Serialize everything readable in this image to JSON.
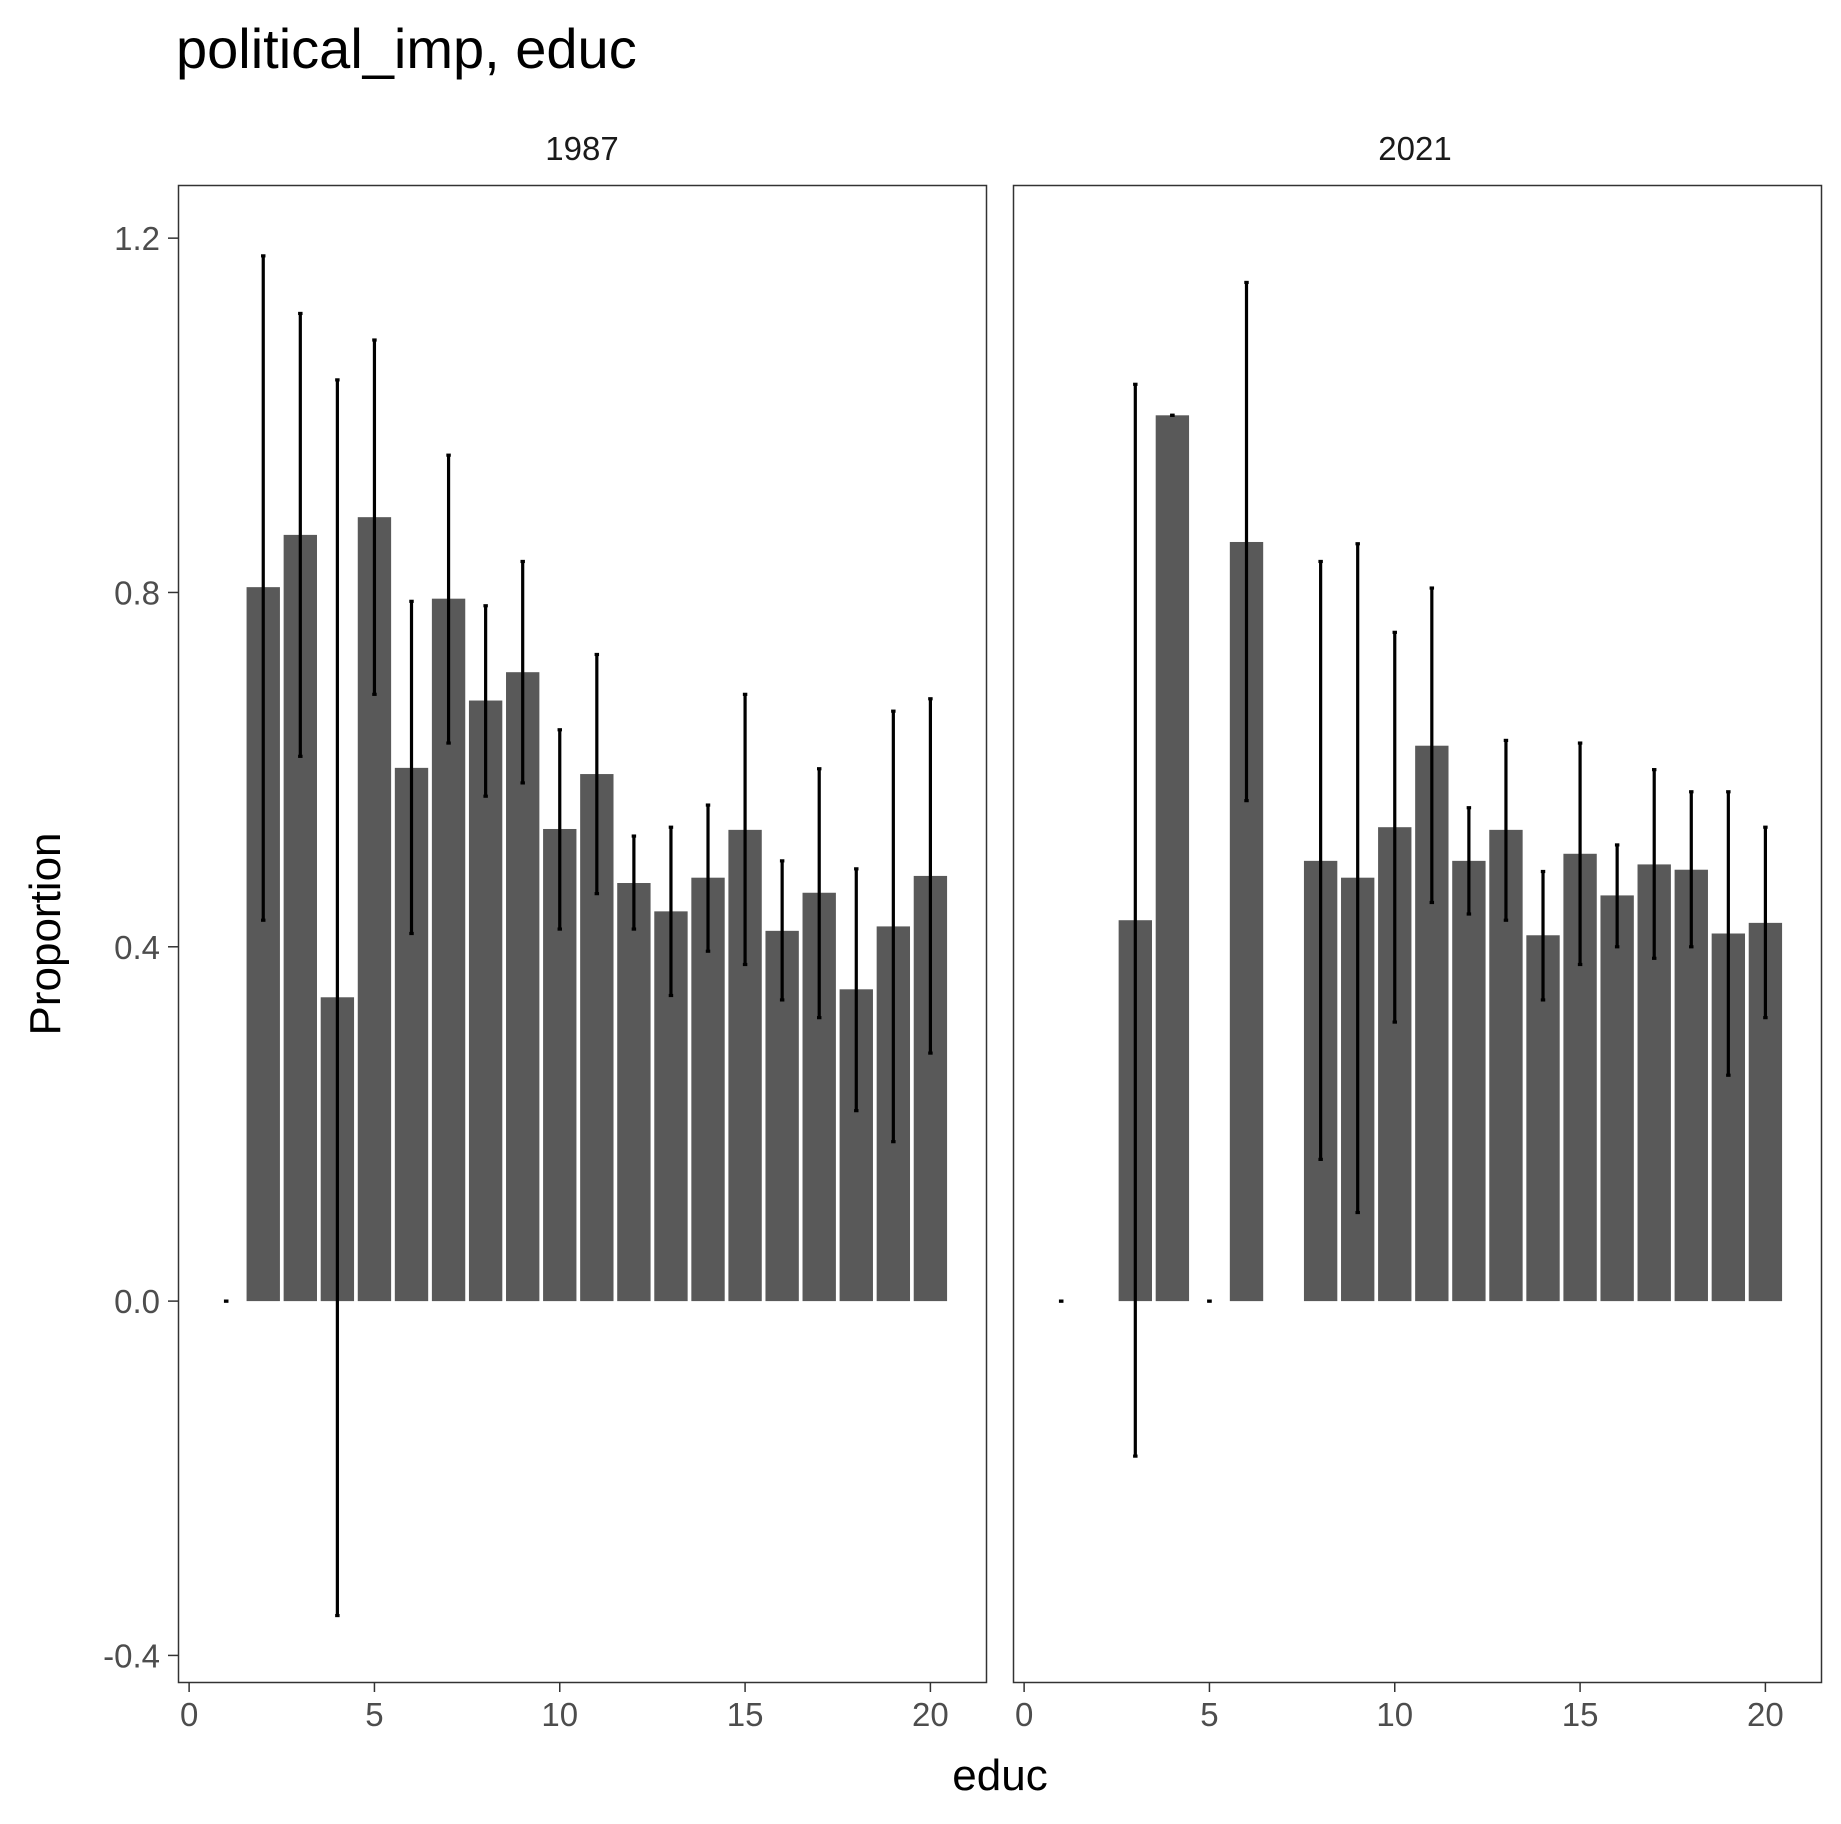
{
  "chart_data": {
    "type": "bar",
    "title": "political_imp, educ",
    "xlabel": "educ",
    "ylabel": "Proportion",
    "xlim": [
      -0.3,
      21.5
    ],
    "ylim": [
      -0.43,
      1.26
    ],
    "x_ticks": [
      "0",
      "5",
      "10",
      "15",
      "20"
    ],
    "y_ticks": [
      "-0.4",
      "0.0",
      "0.4",
      "0.8",
      "1.2"
    ],
    "grid": false,
    "colors": {
      "bar": "#595959",
      "errorbar": "#000000",
      "panel_border": "#333333"
    },
    "panels": [
      {
        "label": "1987",
        "bars": [
          {
            "x": 1,
            "y": 0.0,
            "lo": 0.0,
            "hi": 0.0
          },
          {
            "x": 2,
            "y": 0.806,
            "lo": 0.43,
            "hi": 1.18
          },
          {
            "x": 3,
            "y": 0.865,
            "lo": 0.615,
            "hi": 1.115
          },
          {
            "x": 4,
            "y": 0.343,
            "lo": -0.355,
            "hi": 1.04
          },
          {
            "x": 5,
            "y": 0.885,
            "lo": 0.685,
            "hi": 1.085
          },
          {
            "x": 6,
            "y": 0.602,
            "lo": 0.415,
            "hi": 0.79
          },
          {
            "x": 7,
            "y": 0.793,
            "lo": 0.63,
            "hi": 0.955
          },
          {
            "x": 8,
            "y": 0.678,
            "lo": 0.57,
            "hi": 0.785
          },
          {
            "x": 9,
            "y": 0.71,
            "lo": 0.585,
            "hi": 0.835
          },
          {
            "x": 10,
            "y": 0.533,
            "lo": 0.42,
            "hi": 0.645
          },
          {
            "x": 11,
            "y": 0.595,
            "lo": 0.46,
            "hi": 0.73
          },
          {
            "x": 12,
            "y": 0.472,
            "lo": 0.42,
            "hi": 0.525
          },
          {
            "x": 13,
            "y": 0.44,
            "lo": 0.345,
            "hi": 0.535
          },
          {
            "x": 14,
            "y": 0.478,
            "lo": 0.395,
            "hi": 0.56
          },
          {
            "x": 15,
            "y": 0.532,
            "lo": 0.38,
            "hi": 0.685
          },
          {
            "x": 16,
            "y": 0.418,
            "lo": 0.34,
            "hi": 0.497
          },
          {
            "x": 17,
            "y": 0.461,
            "lo": 0.32,
            "hi": 0.601
          },
          {
            "x": 18,
            "y": 0.352,
            "lo": 0.215,
            "hi": 0.488
          },
          {
            "x": 19,
            "y": 0.423,
            "lo": 0.18,
            "hi": 0.666
          },
          {
            "x": 20,
            "y": 0.48,
            "lo": 0.28,
            "hi": 0.68
          }
        ]
      },
      {
        "label": "2021",
        "bars": [
          {
            "x": 1,
            "y": 0.0,
            "lo": 0.0,
            "hi": 0.0
          },
          {
            "x": 3,
            "y": 0.43,
            "lo": -0.175,
            "hi": 1.035
          },
          {
            "x": 4,
            "y": 1.0,
            "lo": 1.0,
            "hi": 1.0
          },
          {
            "x": 5,
            "y": 0.0,
            "lo": 0.0,
            "hi": 0.0
          },
          {
            "x": 6,
            "y": 0.857,
            "lo": 0.565,
            "hi": 1.15
          },
          {
            "x": 8,
            "y": 0.497,
            "lo": 0.16,
            "hi": 0.835
          },
          {
            "x": 9,
            "y": 0.478,
            "lo": 0.1,
            "hi": 0.855
          },
          {
            "x": 10,
            "y": 0.535,
            "lo": 0.315,
            "hi": 0.755
          },
          {
            "x": 11,
            "y": 0.627,
            "lo": 0.45,
            "hi": 0.805
          },
          {
            "x": 12,
            "y": 0.497,
            "lo": 0.437,
            "hi": 0.557
          },
          {
            "x": 13,
            "y": 0.532,
            "lo": 0.43,
            "hi": 0.633
          },
          {
            "x": 14,
            "y": 0.413,
            "lo": 0.34,
            "hi": 0.485
          },
          {
            "x": 15,
            "y": 0.505,
            "lo": 0.38,
            "hi": 0.63
          },
          {
            "x": 16,
            "y": 0.458,
            "lo": 0.4,
            "hi": 0.515
          },
          {
            "x": 17,
            "y": 0.493,
            "lo": 0.387,
            "hi": 0.6
          },
          {
            "x": 18,
            "y": 0.487,
            "lo": 0.4,
            "hi": 0.575
          },
          {
            "x": 19,
            "y": 0.415,
            "lo": 0.255,
            "hi": 0.575
          },
          {
            "x": 20,
            "y": 0.427,
            "lo": 0.32,
            "hi": 0.535
          }
        ]
      }
    ]
  }
}
